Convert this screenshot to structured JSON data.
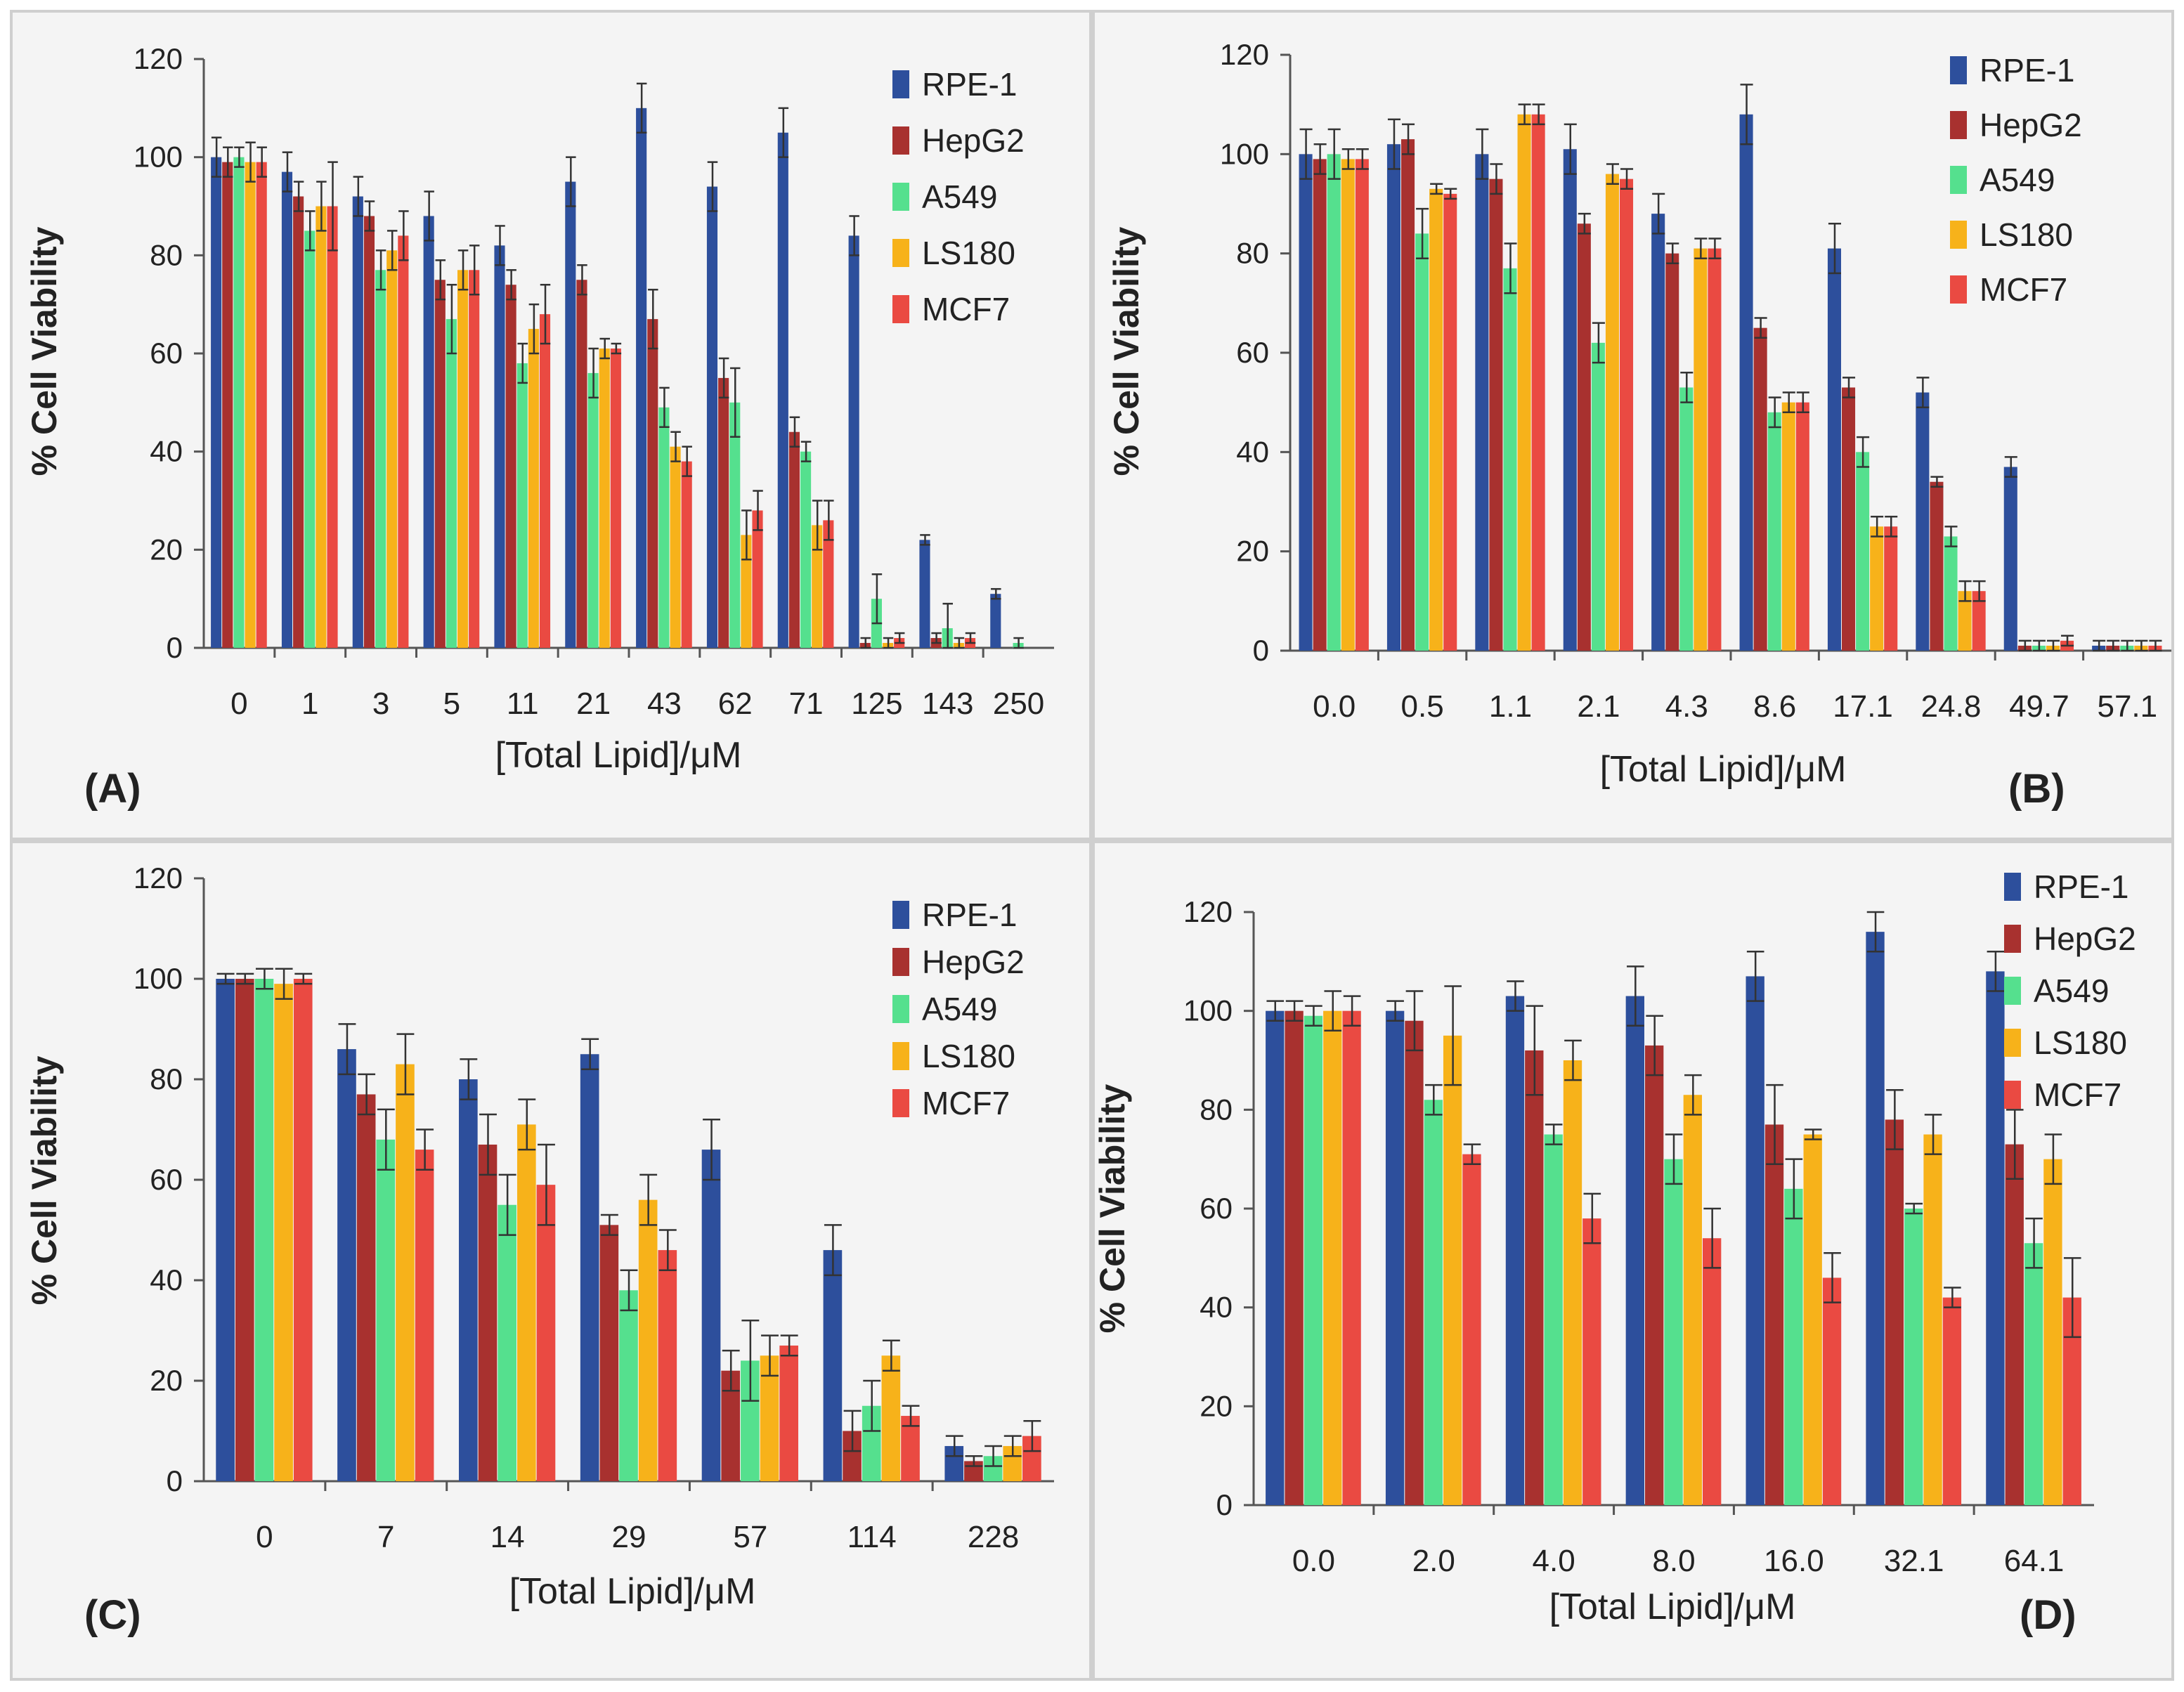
{
  "colors": {
    "RPE-1": "#2d4f9c",
    "HepG2": "#a8312f",
    "A549": "#55e08e",
    "LS180": "#f7b21a",
    "MCF7": "#ea4a42",
    "panel_bg": "#f4f4f4",
    "error_bar": "#333333"
  },
  "chart_data": [
    {
      "type": "bar",
      "panel_label": "(A)",
      "ylabel": "% Cell Viability",
      "xlabel": "[Total Lipid]/μM",
      "ylim": [
        0,
        120
      ],
      "yticks": [
        0,
        20,
        40,
        60,
        80,
        100,
        120
      ],
      "legend": [
        "RPE-1",
        "HepG2",
        "A549",
        "LS180",
        "MCF7"
      ],
      "categories": [
        "0",
        "1",
        "3",
        "5",
        "11",
        "21",
        "43",
        "62",
        "71",
        "125",
        "143",
        "250"
      ],
      "series": [
        {
          "name": "RPE-1",
          "values": [
            100,
            97,
            92,
            88,
            82,
            95,
            110,
            94,
            105,
            84,
            22,
            11
          ],
          "errors": [
            4,
            4,
            4,
            5,
            4,
            5,
            5,
            5,
            5,
            4,
            1,
            1
          ]
        },
        {
          "name": "HepG2",
          "values": [
            99,
            92,
            88,
            75,
            74,
            75,
            67,
            55,
            44,
            1,
            2,
            0
          ],
          "errors": [
            3,
            3,
            3,
            4,
            3,
            3,
            6,
            4,
            3,
            1,
            1,
            0
          ]
        },
        {
          "name": "A549",
          "values": [
            100,
            85,
            77,
            67,
            58,
            56,
            49,
            50,
            40,
            10,
            4,
            1
          ],
          "errors": [
            2,
            4,
            4,
            7,
            4,
            5,
            4,
            7,
            2,
            5,
            5,
            1
          ]
        },
        {
          "name": "LS180",
          "values": [
            99,
            90,
            81,
            77,
            65,
            61,
            41,
            23,
            25,
            1,
            1,
            0
          ],
          "errors": [
            4,
            5,
            4,
            4,
            5,
            2,
            3,
            5,
            5,
            1,
            1,
            0
          ]
        },
        {
          "name": "MCF7",
          "values": [
            99,
            90,
            84,
            77,
            68,
            61,
            38,
            28,
            26,
            2,
            2,
            0
          ],
          "errors": [
            3,
            9,
            5,
            5,
            6,
            1,
            3,
            4,
            4,
            1,
            1,
            0
          ]
        }
      ]
    },
    {
      "type": "bar",
      "panel_label": "(B)",
      "ylabel": "% Cell Viability",
      "xlabel": "[Total Lipid]/μM",
      "ylim": [
        0,
        120
      ],
      "yticks": [
        0,
        20,
        40,
        60,
        80,
        100,
        120
      ],
      "legend": [
        "RPE-1",
        "HepG2",
        "A549",
        "LS180",
        "MCF7"
      ],
      "categories": [
        "0.0",
        "0.5",
        "1.1",
        "2.1",
        "4.3",
        "8.6",
        "17.1",
        "24.8",
        "49.7",
        "57.1"
      ],
      "series": [
        {
          "name": "RPE-1",
          "values": [
            100,
            102,
            100,
            101,
            88,
            108,
            81,
            52,
            37,
            1
          ],
          "errors": [
            5,
            5,
            5,
            5,
            4,
            6,
            5,
            3,
            2,
            1
          ]
        },
        {
          "name": "HepG2",
          "values": [
            99,
            103,
            95,
            86,
            80,
            65,
            53,
            34,
            1,
            1
          ],
          "errors": [
            3,
            3,
            3,
            2,
            2,
            2,
            2,
            1,
            1,
            1
          ]
        },
        {
          "name": "A549",
          "values": [
            100,
            84,
            77,
            62,
            53,
            48,
            40,
            23,
            1,
            1
          ],
          "errors": [
            5,
            5,
            5,
            4,
            3,
            3,
            3,
            2,
            1,
            1
          ]
        },
        {
          "name": "LS180",
          "values": [
            99,
            93,
            108,
            96,
            81,
            50,
            25,
            12,
            1,
            1
          ],
          "errors": [
            2,
            1,
            2,
            2,
            2,
            2,
            2,
            2,
            1,
            1
          ]
        },
        {
          "name": "MCF7",
          "values": [
            99,
            92,
            108,
            95,
            81,
            50,
            25,
            12,
            2,
            1
          ],
          "errors": [
            2,
            1,
            2,
            2,
            2,
            2,
            2,
            2,
            1,
            1
          ]
        }
      ]
    },
    {
      "type": "bar",
      "panel_label": "(C)",
      "ylabel": "% Cell Viability",
      "xlabel": "[Total Lipid]/μM",
      "ylim": [
        0,
        120
      ],
      "yticks": [
        0,
        20,
        40,
        60,
        80,
        100,
        120
      ],
      "legend": [
        "RPE-1",
        "HepG2",
        "A549",
        "LS180",
        "MCF7"
      ],
      "categories": [
        "0",
        "7",
        "14",
        "29",
        "57",
        "114",
        "228"
      ],
      "series": [
        {
          "name": "RPE-1",
          "values": [
            100,
            86,
            80,
            85,
            66,
            46,
            7
          ],
          "errors": [
            1,
            5,
            4,
            3,
            6,
            5,
            2
          ]
        },
        {
          "name": "HepG2",
          "values": [
            100,
            77,
            67,
            51,
            22,
            10,
            4
          ],
          "errors": [
            1,
            4,
            6,
            2,
            4,
            4,
            1
          ]
        },
        {
          "name": "A549",
          "values": [
            100,
            68,
            55,
            38,
            24,
            15,
            5
          ],
          "errors": [
            2,
            6,
            6,
            4,
            8,
            5,
            2
          ]
        },
        {
          "name": "LS180",
          "values": [
            99,
            83,
            71,
            56,
            25,
            25,
            7
          ],
          "errors": [
            3,
            6,
            5,
            5,
            4,
            3,
            2
          ]
        },
        {
          "name": "MCF7",
          "values": [
            100,
            66,
            59,
            46,
            27,
            13,
            9
          ],
          "errors": [
            1,
            4,
            8,
            4,
            2,
            2,
            3
          ]
        }
      ]
    },
    {
      "type": "bar",
      "panel_label": "(D)",
      "ylabel": "% Cell Viability",
      "xlabel": "[Total Lipid]/μM",
      "ylim": [
        0,
        120
      ],
      "yticks": [
        0,
        20,
        40,
        60,
        80,
        100,
        120
      ],
      "legend": [
        "RPE-1",
        "HepG2",
        "A549",
        "LS180",
        "MCF7"
      ],
      "categories": [
        "0.0",
        "2.0",
        "4.0",
        "8.0",
        "16.0",
        "32.1",
        "64.1"
      ],
      "series": [
        {
          "name": "RPE-1",
          "values": [
            100,
            100,
            103,
            103,
            107,
            116,
            108
          ],
          "errors": [
            2,
            2,
            3,
            6,
            5,
            4,
            4
          ]
        },
        {
          "name": "HepG2",
          "values": [
            100,
            98,
            92,
            93,
            77,
            78,
            73
          ],
          "errors": [
            2,
            6,
            9,
            6,
            8,
            6,
            7
          ]
        },
        {
          "name": "A549",
          "values": [
            99,
            82,
            75,
            70,
            64,
            60,
            53
          ],
          "errors": [
            2,
            3,
            2,
            5,
            6,
            1,
            5
          ]
        },
        {
          "name": "LS180",
          "values": [
            100,
            95,
            90,
            83,
            75,
            75,
            70
          ],
          "errors": [
            4,
            10,
            4,
            4,
            1,
            4,
            5
          ]
        },
        {
          "name": "MCF7",
          "values": [
            100,
            71,
            58,
            54,
            46,
            42,
            42
          ],
          "errors": [
            3,
            2,
            5,
            6,
            5,
            2,
            8
          ]
        }
      ]
    }
  ]
}
